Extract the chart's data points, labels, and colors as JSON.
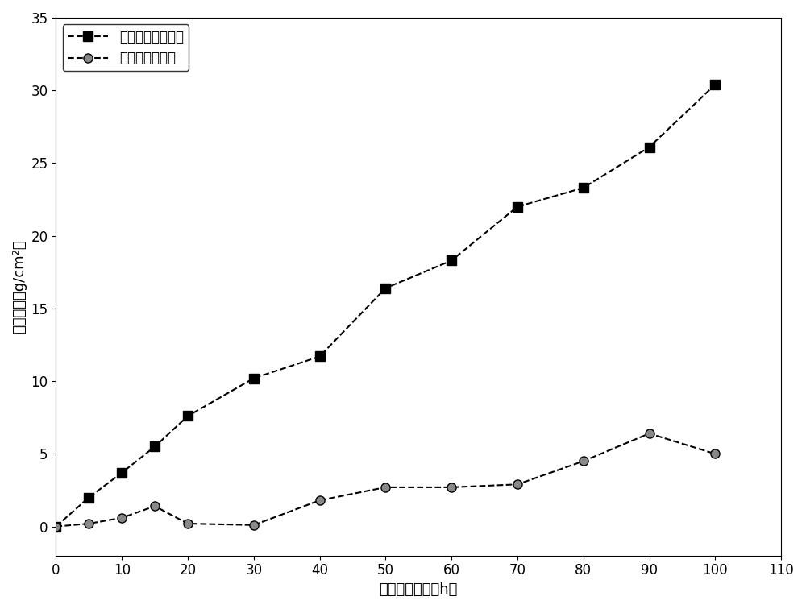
{
  "series1_label": "未加入三氧化二钇",
  "series2_label": "加入三氧化二钇",
  "series1_x": [
    0,
    5,
    10,
    15,
    20,
    30,
    40,
    50,
    60,
    70,
    80,
    90,
    100
  ],
  "series1_y": [
    0,
    2.0,
    3.7,
    5.5,
    7.6,
    10.2,
    11.7,
    16.4,
    18.3,
    22.0,
    23.3,
    26.1,
    30.4
  ],
  "series2_x": [
    0,
    5,
    10,
    15,
    20,
    30,
    40,
    50,
    60,
    70,
    80,
    90,
    100
  ],
  "series2_y": [
    0,
    0.2,
    0.6,
    1.4,
    0.2,
    0.1,
    1.8,
    2.7,
    2.7,
    2.9,
    4.5,
    6.4,
    5.0
  ],
  "xlabel": "熔盐腐蚀时间（h）",
  "ylabel": "腐蚀增重（g/cm²）",
  "xlim": [
    0,
    110
  ],
  "ylim": [
    -2,
    35
  ],
  "xticks": [
    0,
    10,
    20,
    30,
    40,
    50,
    60,
    70,
    80,
    90,
    100,
    110
  ],
  "yticks": [
    0,
    5,
    10,
    15,
    20,
    25,
    30,
    35
  ],
  "line_color": "#000000",
  "marker1": "s",
  "marker2": "o",
  "marker_size": 8,
  "line_style": "--",
  "background_color": "#ffffff",
  "legend_loc": "upper left",
  "title_fontsize": 13,
  "axis_fontsize": 13,
  "tick_fontsize": 12,
  "legend_fontsize": 12
}
